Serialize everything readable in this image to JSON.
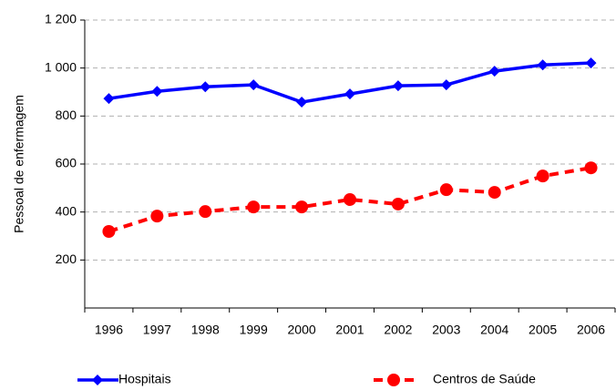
{
  "chart_data": {
    "type": "line",
    "y_label": "Pessoal de enfermagem",
    "categories": [
      "1996",
      "1997",
      "1998",
      "1999",
      "2000",
      "2001",
      "2002",
      "2003",
      "2004",
      "2005",
      "2006"
    ],
    "series": [
      {
        "name": "Hospitais",
        "color": "#0000ff",
        "marker": "diamond",
        "dashed": false,
        "values": [
          873,
          903,
          922,
          930,
          858,
          892,
          926,
          930,
          987,
          1013,
          1021
        ]
      },
      {
        "name": "Centros de Saúde",
        "color": "#ff0000",
        "marker": "circle",
        "dashed": true,
        "values": [
          319,
          383,
          402,
          421,
          421,
          452,
          433,
          493,
          482,
          550,
          584
        ]
      }
    ],
    "ylim": [
      0,
      1200
    ],
    "yticks": [
      200,
      400,
      600,
      800,
      {
        "value": 1000,
        "label": "1 000"
      },
      {
        "value": 1200,
        "label": "1 200"
      }
    ],
    "grid": true,
    "legend": "bottom"
  }
}
